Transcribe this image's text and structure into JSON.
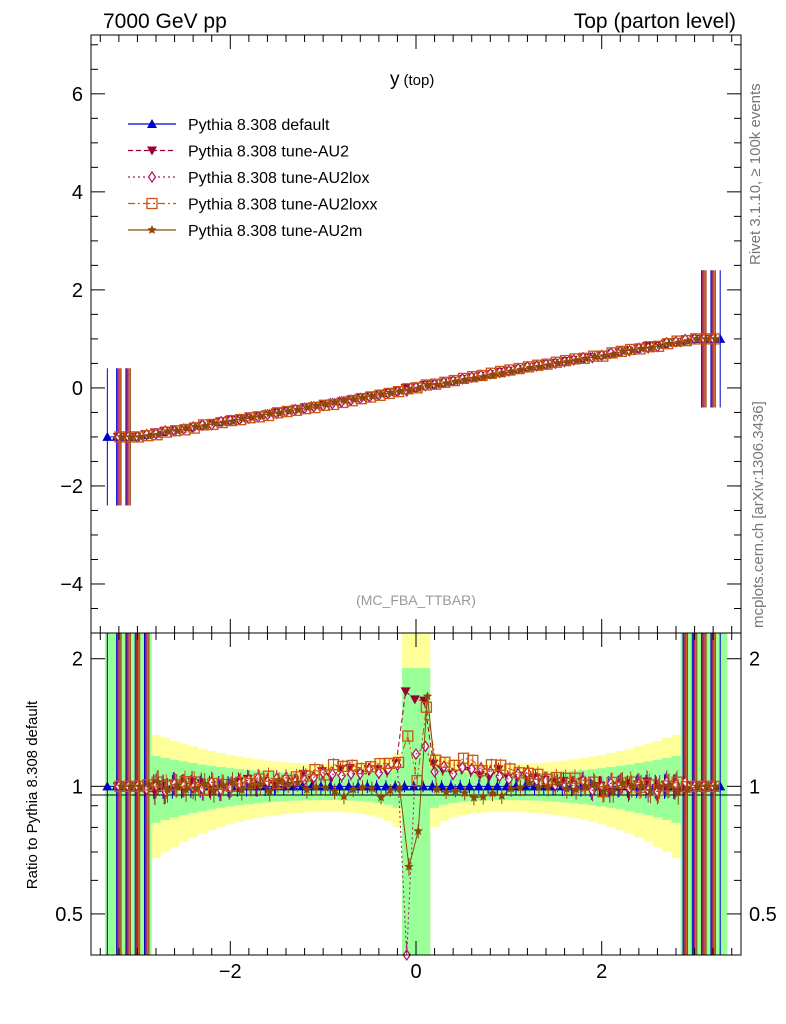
{
  "header": {
    "left": "7000 GeV pp",
    "right": "Top (parton level)"
  },
  "side": {
    "rivet": "Rivet 3.1.10, ≥ 100k events",
    "mcplots": "mcplots.cern.ch [arXiv:1306.3436]"
  },
  "chart_data": {
    "type": "line",
    "title": "y (top)",
    "title_main": "y",
    "title_sub": "(top)",
    "watermark": "(MC_FBA_TTBAR)",
    "xlim": [
      -3.5,
      3.5
    ],
    "ylim": [
      -5,
      7.2
    ],
    "xticks": [
      -2,
      0,
      2
    ],
    "xtick_labels": [
      "−2",
      "0",
      "2"
    ],
    "yticks": [
      -4,
      -2,
      0,
      2,
      4,
      6
    ],
    "ytick_labels": [
      "−4",
      "−2",
      "0",
      "2",
      "4",
      "6"
    ],
    "ratio": {
      "ylabel": "Ratio to Pythia 8.308 default",
      "ylim": [
        0.4,
        2.3
      ],
      "yticks": [
        0.5,
        1,
        2
      ],
      "ytick_labels": [
        "0.5",
        "1",
        "2"
      ]
    },
    "series": [
      {
        "name": "Pythia 8.308 default",
        "color": "#0000cc",
        "marker": "triangle-up",
        "dash": "",
        "offset": 0.0
      },
      {
        "name": "Pythia 8.308 tune-AU2",
        "color": "#990033",
        "marker": "triangle-down",
        "dash": "5,3",
        "offset": 0.03
      },
      {
        "name": "Pythia 8.308 tune-AU2lox",
        "color": "#aa1166",
        "marker": "diamond-open",
        "dash": "2,3",
        "offset": 0.03
      },
      {
        "name": "Pythia 8.308 tune-AU2loxx",
        "color": "#cc5511",
        "marker": "square-open",
        "dash": "7,3,2,3",
        "offset": 0.045
      },
      {
        "name": "Pythia 8.308 tune-AU2m",
        "color": "#8b4a0a",
        "marker": "star",
        "dash": "",
        "offset": 0.0
      }
    ]
  }
}
